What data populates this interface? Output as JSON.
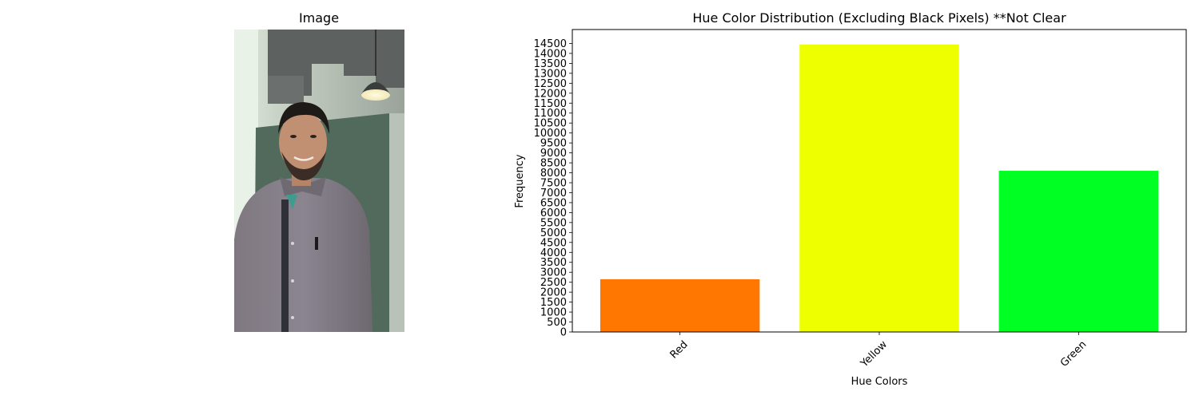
{
  "left_panel": {
    "title": "Image"
  },
  "chart_data": {
    "type": "bar",
    "title": "Hue Color Distribution (Excluding Black Pixels) **Not Clear",
    "xlabel": "Hue Colors",
    "ylabel": "Frequency",
    "categories": [
      "Red",
      "Yellow",
      "Green"
    ],
    "values": [
      2650,
      14450,
      8100
    ],
    "colors": [
      "#ff7700",
      "#eeff00",
      "#00ff22"
    ],
    "ylim": [
      0,
      15200
    ],
    "yticks": [
      0,
      500,
      1000,
      1500,
      2000,
      2500,
      3000,
      3500,
      4000,
      4500,
      5000,
      5500,
      6000,
      6500,
      7000,
      7500,
      8000,
      8500,
      9000,
      9500,
      10000,
      10500,
      11000,
      11500,
      12000,
      12500,
      13000,
      13500,
      14000,
      14500
    ],
    "grid": false
  }
}
